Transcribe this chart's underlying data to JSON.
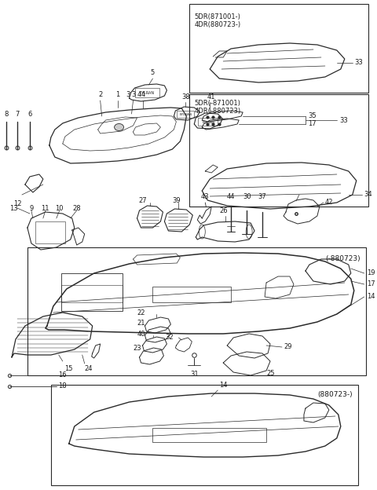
{
  "bg_color": "#ffffff",
  "line_color": "#2a2a2a",
  "box1_label": "5DR(871001-)\n4DR(880723-)",
  "box2_label": "5DR(-871001)\n4DR(-880723)",
  "box3_label": "(-880723)",
  "box4_label": "(880723-)"
}
